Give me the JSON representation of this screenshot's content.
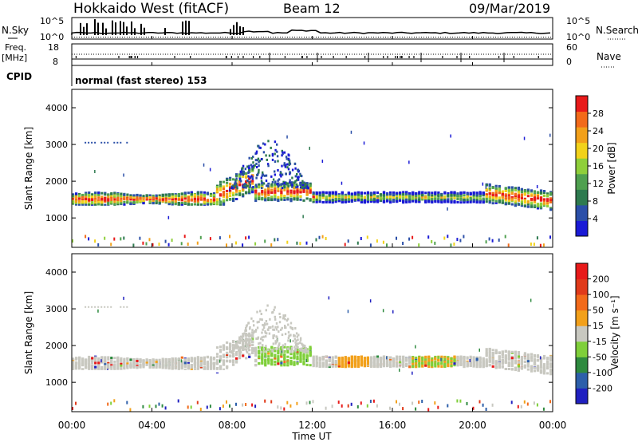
{
  "header": {
    "station": "Hokkaido West (fitACF)",
    "beam": "Beam 12",
    "date": "09/Mar/2019"
  },
  "top_panels": {
    "nsky_label": "N.Sky",
    "nsearch_label": "N.Search",
    "noise_ticks": [
      "10^5",
      "10^0"
    ],
    "freq_label": "Freq.",
    "freq_unit": "[MHz]",
    "freq_ticks": [
      "18",
      "8"
    ],
    "nave_label": "Nave",
    "nave_ticks": [
      "60",
      "0"
    ],
    "cpid_label": "CPID",
    "cpid_text": "normal (fast stereo) 153"
  },
  "colors": {
    "power": [
      "#1a1ad6",
      "#2b4fa8",
      "#2e7a4f",
      "#4fa04f",
      "#8fcf3a",
      "#f2d21a",
      "#f2a01a",
      "#f26a1a",
      "#e81a1a"
    ],
    "velocity": [
      "#2020c0",
      "#2d5faa",
      "#2e8a3f",
      "#7fcf3a",
      "#c8c8c0",
      "#f2a01a",
      "#f26a1a",
      "#e03a1a",
      "#e81a1a"
    ]
  },
  "chart_data": [
    {
      "type": "heatmap",
      "name": "power",
      "ylabel": "Slant Range [km]",
      "yticks": [
        "1000",
        "2000",
        "3000",
        "4000"
      ],
      "ylim": [
        200,
        4500
      ],
      "colorbar_label": "Power [dB]",
      "colorbar_ticks": [
        "4",
        "8",
        "12",
        "16",
        "20",
        "24",
        "28"
      ],
      "xticks": [
        "00:00",
        "04:00",
        "08:00",
        "12:00",
        "16:00",
        "20:00",
        "00:00"
      ],
      "xlabel": "Time UT"
    },
    {
      "type": "heatmap",
      "name": "velocity",
      "ylabel": "Slant Range [km]",
      "yticks": [
        "1000",
        "2000",
        "3000",
        "4000"
      ],
      "ylim": [
        200,
        4500
      ],
      "colorbar_label": "Velocity [m s⁻¹]",
      "colorbar_ticks": [
        "-200",
        "-100",
        "-50",
        "-15",
        "15",
        "50",
        "100",
        "200"
      ],
      "xticks": [
        "00:00",
        "04:00",
        "08:00",
        "12:00",
        "16:00",
        "20:00",
        "00:00"
      ],
      "xlabel": "Time UT"
    }
  ]
}
